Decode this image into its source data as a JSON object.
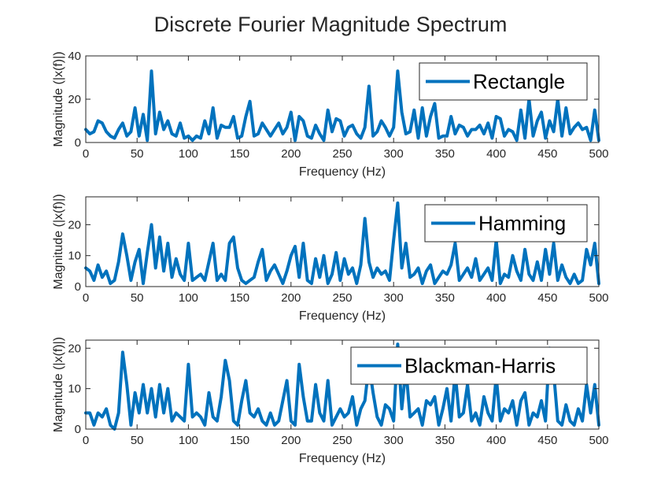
{
  "chart_data": {
    "type": "line",
    "title": "Discrete Fourier Magnitude Spectrum",
    "line_color": "#0072BD",
    "subplots": [
      {
        "legend": "Rectangle",
        "xlabel": "Frequency (Hz)",
        "ylabel": "Magnitude (|x(f)|)",
        "xlim": [
          0,
          500
        ],
        "ylim": [
          0,
          40
        ],
        "xticks": [
          0,
          50,
          100,
          150,
          200,
          250,
          300,
          350,
          400,
          450,
          500
        ],
        "yticks": [
          0,
          20,
          40
        ],
        "legend_location": "top-right",
        "x": [
          0,
          4,
          8,
          12,
          16,
          20,
          24,
          28,
          32,
          36,
          40,
          44,
          48,
          52,
          56,
          60,
          64,
          68,
          72,
          76,
          80,
          84,
          88,
          92,
          96,
          100,
          104,
          108,
          112,
          116,
          120,
          124,
          128,
          132,
          136,
          140,
          144,
          148,
          152,
          156,
          160,
          164,
          168,
          172,
          176,
          180,
          184,
          188,
          192,
          196,
          200,
          204,
          208,
          212,
          216,
          220,
          224,
          228,
          232,
          236,
          240,
          244,
          248,
          252,
          256,
          260,
          264,
          268,
          272,
          276,
          280,
          284,
          288,
          292,
          296,
          300,
          304,
          308,
          312,
          316,
          320,
          324,
          328,
          332,
          336,
          340,
          344,
          348,
          352,
          356,
          360,
          364,
          368,
          372,
          376,
          380,
          384,
          388,
          392,
          396,
          400,
          404,
          408,
          412,
          416,
          420,
          424,
          428,
          432,
          436,
          440,
          444,
          448,
          452,
          456,
          460,
          464,
          468,
          472,
          476,
          480,
          484,
          488,
          492,
          496,
          500
        ],
        "y": [
          6,
          4,
          5,
          10,
          9,
          5,
          3,
          2,
          6,
          9,
          3,
          5,
          16,
          3,
          13,
          1,
          33,
          4,
          14,
          6,
          10,
          4,
          3,
          9,
          2,
          3,
          1,
          3,
          2,
          10,
          4,
          16,
          2,
          8,
          7,
          7,
          12,
          2,
          3,
          12,
          19,
          3,
          4,
          9,
          6,
          3,
          6,
          9,
          4,
          7,
          14,
          1,
          12,
          10,
          3,
          2,
          8,
          4,
          1,
          15,
          5,
          11,
          10,
          3,
          7,
          8,
          4,
          2,
          7,
          26,
          3,
          5,
          10,
          7,
          3,
          7,
          33,
          14,
          4,
          5,
          15,
          2,
          16,
          3,
          12,
          18,
          2,
          3,
          3,
          12,
          4,
          8,
          7,
          3,
          6,
          6,
          8,
          4,
          9,
          2,
          12,
          11,
          3,
          6,
          5,
          1,
          15,
          2,
          20,
          3,
          10,
          14,
          2,
          10,
          5,
          20,
          3,
          16,
          4,
          7,
          9,
          6,
          7,
          1,
          15,
          1
        ],
        "y_points": [
          [
            0,
            6
          ],
          [
            12,
            10
          ],
          [
            60,
            33
          ],
          [
            143,
            19
          ],
          [
            208,
            7
          ],
          [
            270,
            26
          ],
          [
            303,
            33
          ],
          [
            330,
            21
          ],
          [
            430,
            18
          ],
          [
            452,
            20
          ],
          [
            495,
            15
          ],
          [
            500,
            1
          ]
        ]
      },
      {
        "legend": "Hamming",
        "xlabel": "Frequency (Hz)",
        "ylabel": "Magnitude (|x(f)|)",
        "xlim": [
          0,
          500
        ],
        "ylim": [
          0,
          29
        ],
        "xticks": [
          0,
          50,
          100,
          150,
          200,
          250,
          300,
          350,
          400,
          450,
          500
        ],
        "yticks": [
          0,
          10,
          20
        ],
        "legend_location": "top-right",
        "x": [
          0,
          4,
          8,
          12,
          16,
          20,
          24,
          28,
          32,
          36,
          40,
          44,
          48,
          52,
          56,
          60,
          64,
          68,
          72,
          76,
          80,
          84,
          88,
          92,
          96,
          100,
          104,
          108,
          112,
          116,
          120,
          124,
          128,
          132,
          136,
          140,
          144,
          148,
          152,
          156,
          160,
          164,
          168,
          172,
          176,
          180,
          184,
          188,
          192,
          196,
          200,
          204,
          208,
          212,
          216,
          220,
          224,
          228,
          232,
          236,
          240,
          244,
          248,
          252,
          256,
          260,
          264,
          268,
          272,
          276,
          280,
          284,
          288,
          292,
          296,
          300,
          304,
          308,
          312,
          316,
          320,
          324,
          328,
          332,
          336,
          340,
          344,
          348,
          352,
          356,
          360,
          364,
          368,
          372,
          376,
          380,
          384,
          388,
          392,
          396,
          400,
          404,
          408,
          412,
          416,
          420,
          424,
          428,
          432,
          436,
          440,
          444,
          448,
          452,
          456,
          460,
          464,
          468,
          472,
          476,
          480,
          484,
          488,
          492,
          496,
          500
        ],
        "y": [
          6,
          5,
          2,
          7,
          3,
          5,
          1,
          2,
          8,
          17,
          10,
          2,
          8,
          12,
          1,
          11,
          20,
          6,
          16,
          5,
          14,
          3,
          9,
          4,
          2,
          14,
          2,
          3,
          4,
          2,
          8,
          14,
          2,
          4,
          2,
          14,
          16,
          6,
          2,
          1,
          2,
          3,
          8,
          12,
          2,
          5,
          7,
          4,
          1,
          5,
          10,
          13,
          3,
          14,
          2,
          1,
          9,
          3,
          10,
          1,
          4,
          11,
          2,
          9,
          4,
          6,
          1,
          7,
          22,
          8,
          3,
          6,
          4,
          5,
          2,
          15,
          27,
          6,
          14,
          3,
          4,
          6,
          1,
          5,
          7,
          1,
          3,
          5,
          4,
          7,
          14,
          2,
          4,
          6,
          3,
          9,
          2,
          4,
          6,
          2,
          15,
          1,
          4,
          3,
          10,
          5,
          2,
          12,
          4,
          2,
          8,
          2,
          12,
          4,
          14,
          2,
          7,
          3,
          1,
          4,
          1,
          2,
          12,
          7,
          14,
          1
        ],
        "y_points": [
          [
            0,
            6
          ],
          [
            34,
            17
          ],
          [
            63,
            20
          ],
          [
            145,
            16
          ],
          [
            270,
            23
          ],
          [
            303,
            28
          ],
          [
            335,
            12
          ],
          [
            400,
            14
          ],
          [
            450,
            14
          ],
          [
            497,
            14
          ],
          [
            500,
            1
          ]
        ]
      },
      {
        "legend": "Blackman-Harris",
        "xlabel": "Frequency (Hz)",
        "ylabel": "Magnitude (|x(f)|)",
        "xlim": [
          0,
          500
        ],
        "ylim": [
          0,
          22
        ],
        "xticks": [
          0,
          50,
          100,
          150,
          200,
          250,
          300,
          350,
          400,
          450,
          500
        ],
        "yticks": [
          0,
          10,
          20
        ],
        "legend_location": "top-right",
        "x": [
          0,
          4,
          8,
          12,
          16,
          20,
          24,
          28,
          32,
          36,
          40,
          44,
          48,
          52,
          56,
          60,
          64,
          68,
          72,
          76,
          80,
          84,
          88,
          92,
          96,
          100,
          104,
          108,
          112,
          116,
          120,
          124,
          128,
          132,
          136,
          140,
          144,
          148,
          152,
          156,
          160,
          164,
          168,
          172,
          176,
          180,
          184,
          188,
          192,
          196,
          200,
          204,
          208,
          212,
          216,
          220,
          224,
          228,
          232,
          236,
          240,
          244,
          248,
          252,
          256,
          260,
          264,
          268,
          272,
          276,
          280,
          284,
          288,
          292,
          296,
          300,
          304,
          308,
          312,
          316,
          320,
          324,
          328,
          332,
          336,
          340,
          344,
          348,
          352,
          356,
          360,
          364,
          368,
          372,
          376,
          380,
          384,
          388,
          392,
          396,
          400,
          404,
          408,
          412,
          416,
          420,
          424,
          428,
          432,
          436,
          440,
          444,
          448,
          452,
          456,
          460,
          464,
          468,
          472,
          476,
          480,
          484,
          488,
          492,
          496,
          500
        ],
        "y": [
          4,
          4,
          1,
          4,
          3,
          5,
          1,
          0,
          4,
          19,
          11,
          1,
          9,
          4,
          11,
          4,
          10,
          3,
          11,
          4,
          10,
          2,
          4,
          3,
          2,
          16,
          3,
          4,
          3,
          1,
          9,
          3,
          2,
          8,
          17,
          12,
          2,
          1,
          7,
          12,
          4,
          3,
          5,
          2,
          1,
          4,
          1,
          2,
          7,
          12,
          2,
          1,
          16,
          8,
          2,
          2,
          11,
          4,
          2,
          12,
          1,
          3,
          5,
          3,
          4,
          8,
          1,
          5,
          7,
          16,
          9,
          3,
          1,
          6,
          5,
          2,
          21,
          5,
          15,
          3,
          4,
          5,
          1,
          7,
          6,
          8,
          1,
          5,
          10,
          2,
          14,
          3,
          4,
          11,
          2,
          4,
          1,
          8,
          4,
          2,
          13,
          2,
          5,
          4,
          7,
          1,
          7,
          9,
          1,
          4,
          3,
          7,
          2,
          20,
          14,
          2,
          1,
          6,
          2,
          1,
          5,
          2,
          11,
          4,
          11,
          1
        ],
        "y_points": [
          [
            0,
            4
          ],
          [
            34,
            19
          ],
          [
            100,
            16
          ],
          [
            140,
            17
          ],
          [
            206,
            16
          ],
          [
            270,
            16
          ],
          [
            303,
            21
          ],
          [
            360,
            14
          ],
          [
            400,
            13
          ],
          [
            452,
            20
          ],
          [
            500,
            1
          ]
        ]
      }
    ]
  }
}
